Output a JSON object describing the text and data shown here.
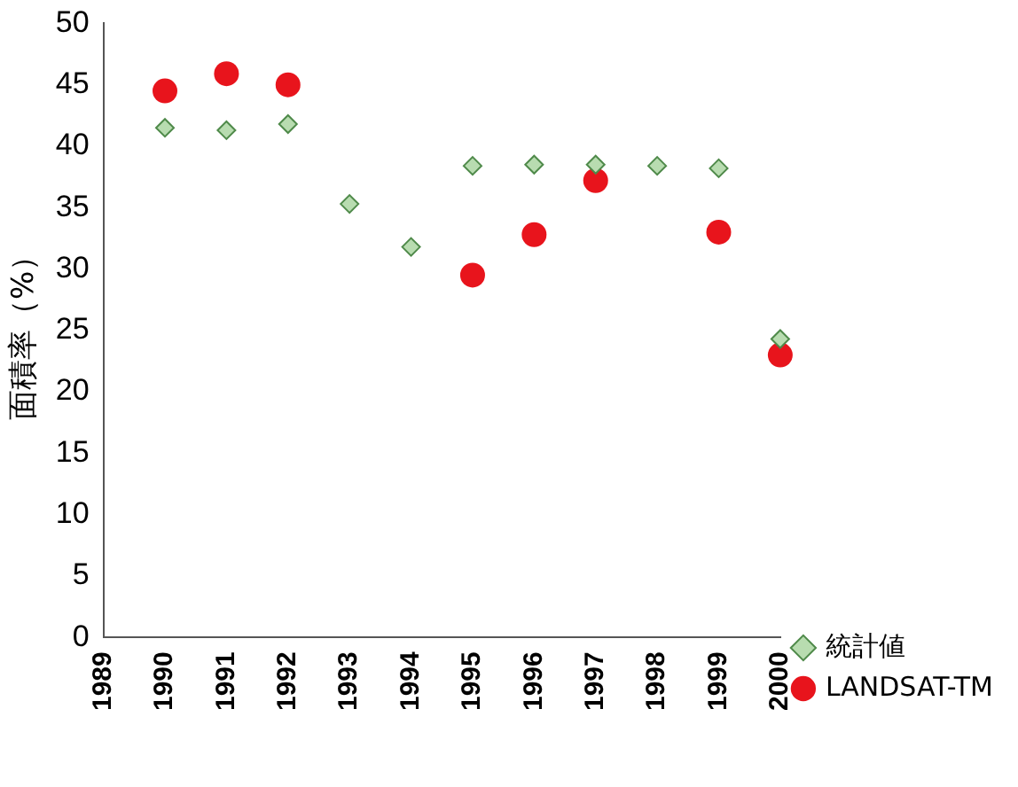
{
  "chart_data": {
    "type": "scatter",
    "ylabel": "面積率（%）",
    "xlim": [
      1989,
      2000
    ],
    "xticks": [
      1989,
      1990,
      1991,
      1992,
      1993,
      1994,
      1995,
      1996,
      1997,
      1998,
      1999,
      2000
    ],
    "ylim": [
      0,
      50
    ],
    "yticks": [
      0,
      5,
      10,
      15,
      20,
      25,
      30,
      35,
      40,
      45,
      50
    ],
    "grid": false,
    "legend": "bottom right",
    "series": [
      {
        "name": "統計値",
        "color": "#b8dcb0",
        "marker": "diamond",
        "x": [
          1990,
          1991,
          1992,
          1993,
          1994,
          1995,
          1996,
          1997,
          1998,
          1999,
          2000
        ],
        "values": [
          41.5,
          41.3,
          41.8,
          35.3,
          31.8,
          38.4,
          38.5,
          38.5,
          38.4,
          38.2,
          24.3
        ]
      },
      {
        "name": "LANDSAT-TM",
        "color": "#e8141c",
        "marker": "circle",
        "x": [
          1990,
          1991,
          1992,
          1995,
          1996,
          1997,
          1999,
          2000
        ],
        "values": [
          44.5,
          45.9,
          45.0,
          29.5,
          32.8,
          37.2,
          33.0,
          23.0
        ]
      }
    ]
  }
}
